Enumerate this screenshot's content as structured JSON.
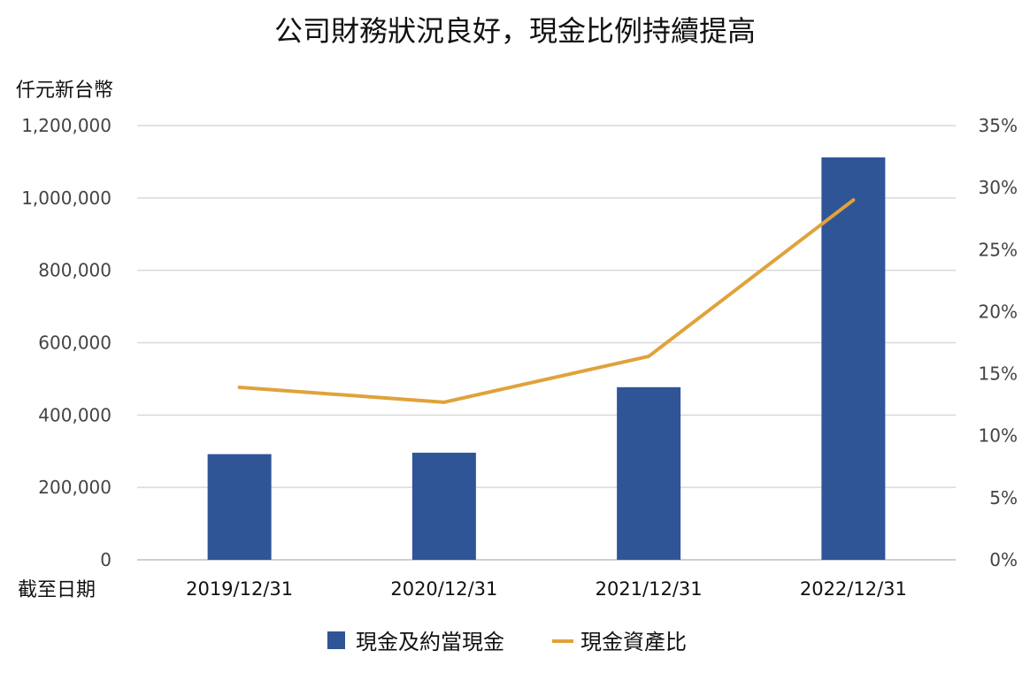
{
  "chart_data": {
    "type": "bar",
    "title": "公司財務狀況良好，現金比例持續提高",
    "ylabel": "仟元新台幣",
    "xlabel": "截至日期",
    "categories": [
      "2019/12/31",
      "2020/12/31",
      "2021/12/31",
      "2022/12/31"
    ],
    "ylim": [
      0,
      1200000
    ],
    "y_ticks": [
      "0",
      "200,000",
      "400,000",
      "600,000",
      "800,000",
      "1,000,000",
      "1,200,000"
    ],
    "y2lim": [
      0,
      35
    ],
    "y2_ticks": [
      "0%",
      "5%",
      "10%",
      "15%",
      "20%",
      "25%",
      "30%",
      "35%"
    ],
    "grid": true,
    "legend_position": "bottom",
    "series": [
      {
        "name": "現金及約當現金",
        "type": "bar",
        "axis": "left",
        "color": "#2F5597",
        "values": [
          292000,
          296000,
          477000,
          1112000
        ]
      },
      {
        "name": "現金資產比",
        "type": "line",
        "axis": "right",
        "color": "#E0A23B",
        "values": [
          13.9,
          12.7,
          16.4,
          29.0
        ]
      }
    ]
  }
}
